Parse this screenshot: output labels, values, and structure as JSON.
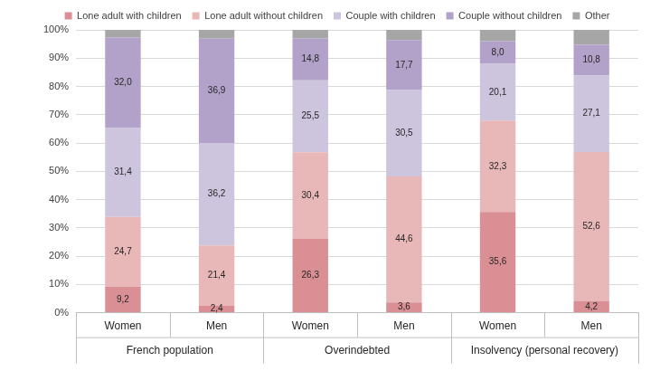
{
  "chart_data": {
    "type": "bar",
    "stacked": true,
    "grid": true,
    "legend": "top",
    "data_labels": true,
    "categories": [
      "Women",
      "Men",
      "Women",
      "Men",
      "Women",
      "Men"
    ],
    "group_labels": [
      "French population",
      "Overindebted",
      "Insolvency (personal recovery)"
    ],
    "ylim": [
      0,
      100
    ],
    "yticks": [
      {
        "value": 0,
        "label": "0%"
      },
      {
        "value": 10,
        "label": "10%"
      },
      {
        "value": 20,
        "label": "20%"
      },
      {
        "value": 30,
        "label": "30%"
      },
      {
        "value": 40,
        "label": "40%"
      },
      {
        "value": 50,
        "label": "50%"
      },
      {
        "value": 60,
        "label": "60%"
      },
      {
        "value": 70,
        "label": "70%"
      },
      {
        "value": 80,
        "label": "80%"
      },
      {
        "value": 90,
        "label": "90%"
      },
      {
        "value": 100,
        "label": "100%"
      }
    ],
    "series": [
      {
        "name": "Lone adult with children",
        "color": "#d98f94",
        "values": [
          9.2,
          2.4,
          26.3,
          3.6,
          35.6,
          4.2
        ],
        "value_labels": [
          "9,2",
          "2,4",
          "26,3",
          "3,6",
          "35,6",
          "4,2"
        ]
      },
      {
        "name": "Lone adult without children",
        "color": "#e8b7b8",
        "values": [
          24.7,
          21.4,
          30.4,
          44.6,
          32.3,
          52.6
        ],
        "value_labels": [
          "24,7",
          "21,4",
          "30,4",
          "44,6",
          "32,3",
          "52,6"
        ]
      },
      {
        "name": "Couple with children",
        "color": "#cdc4dd",
        "values": [
          31.4,
          36.2,
          25.5,
          30.5,
          20.1,
          27.1
        ],
        "value_labels": [
          "31,4",
          "36,2",
          "25,5",
          "30,5",
          "20,1",
          "27,1"
        ]
      },
      {
        "name": "Couple without children",
        "color": "#b2a1c8",
        "values": [
          32.0,
          36.9,
          14.8,
          17.7,
          8.0,
          10.8
        ],
        "value_labels": [
          "32,0",
          "36,9",
          "14,8",
          "17,7",
          "8,0",
          "10,8"
        ]
      },
      {
        "name": "Other",
        "color": "#a6a6a6",
        "values": [
          2.7,
          3.1,
          3.0,
          3.6,
          4.0,
          5.3
        ],
        "value_labels": [
          null,
          null,
          null,
          null,
          null,
          null
        ]
      }
    ]
  }
}
